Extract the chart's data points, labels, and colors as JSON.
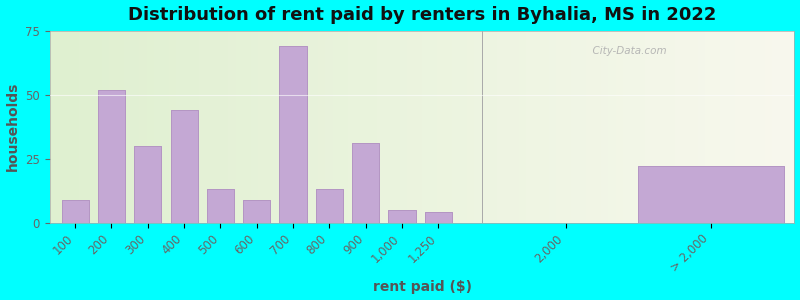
{
  "title": "Distribution of rent paid by renters in Byhalia, MS in 2022",
  "xlabel": "rent paid ($)",
  "ylabel": "households",
  "background_outer": "#00FFFF",
  "bar_color": "#c4a8d4",
  "bar_edge_color": "#b090c0",
  "ylim": [
    0,
    75
  ],
  "yticks": [
    0,
    25,
    50,
    75
  ],
  "categories": [
    "100",
    "200",
    "300",
    "400",
    "500",
    "600",
    "700",
    "800",
    "900",
    "1,000",
    "1,250",
    "2,000",
    "> 2,000"
  ],
  "values": [
    9,
    52,
    30,
    44,
    13,
    9,
    69,
    13,
    31,
    5,
    4,
    0,
    22
  ],
  "title_fontsize": 13,
  "axis_fontsize": 10,
  "tick_fontsize": 8.5,
  "watermark": "City-Data.com"
}
